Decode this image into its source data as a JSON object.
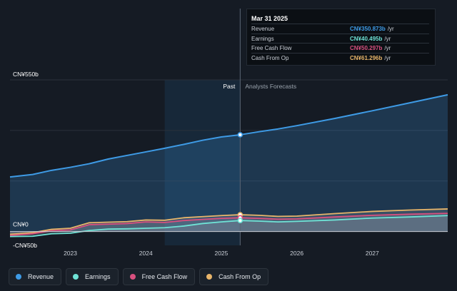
{
  "colors": {
    "revenue": "#3e9be6",
    "earnings": "#6fe3d6",
    "fcf": "#d9507f",
    "cfo": "#e8b56a",
    "background": "#151b24",
    "past_shade": "#1b3a55"
  },
  "tooltip": {
    "date": "Mar 31 2025",
    "unit": "/yr",
    "rows": [
      {
        "label": "Revenue",
        "value": "CN¥350.873b"
      },
      {
        "label": "Earnings",
        "value": "CN¥40.495b"
      },
      {
        "label": "Free Cash Flow",
        "value": "CN¥50.297b"
      },
      {
        "label": "Cash From Op",
        "value": "CN¥61.296b"
      }
    ]
  },
  "legend": [
    {
      "label": "Revenue",
      "icon": "revenue-dot"
    },
    {
      "label": "Earnings",
      "icon": "earnings-dot"
    },
    {
      "label": "Free Cash Flow",
      "icon": "fcf-dot"
    },
    {
      "label": "Cash From Op",
      "icon": "cfo-dot"
    }
  ],
  "chart_data": {
    "type": "area",
    "title": "",
    "xlabel": "",
    "ylabel": "",
    "y_labels": [
      "CN¥550b",
      "CN¥0",
      "-CN¥50b"
    ],
    "y_ticks": [
      550,
      0,
      -50
    ],
    "ylim": [
      -50,
      550
    ],
    "xlim": [
      2022.2,
      2028.0
    ],
    "x_ticks": [
      2023,
      2024,
      2025,
      2026,
      2027
    ],
    "x_tick_labels": [
      "2023",
      "2024",
      "2025",
      "2026",
      "2027"
    ],
    "grid": true,
    "past_label": "Past",
    "forecast_label": "Analysts Forecasts",
    "past_start": 2024.25,
    "divider_x": 2025.25,
    "series": [
      {
        "name": "Revenue",
        "key": "revenue",
        "x": [
          2022.2,
          2022.5,
          2022.75,
          2023.0,
          2023.25,
          2023.5,
          2023.75,
          2024.0,
          2024.25,
          2024.5,
          2024.75,
          2025.0,
          2025.25,
          2025.5,
          2025.75,
          2026.0,
          2026.5,
          2027.0,
          2027.5,
          2028.0
        ],
        "y": [
          198,
          207,
          222,
          233,
          246,
          263,
          276,
          289,
          302,
          316,
          331,
          343,
          351,
          362,
          372,
          384,
          410,
          438,
          467,
          496
        ]
      },
      {
        "name": "Earnings",
        "key": "earnings",
        "x": [
          2022.2,
          2022.5,
          2022.75,
          2023.0,
          2023.25,
          2023.5,
          2023.75,
          2024.0,
          2024.25,
          2024.5,
          2024.75,
          2025.0,
          2025.25,
          2025.5,
          2025.75,
          2026.0,
          2026.5,
          2027.0,
          2027.5,
          2028.0
        ],
        "y": [
          -18,
          -17,
          -8,
          -6,
          4,
          9,
          10,
          12,
          14,
          20,
          29,
          35,
          40,
          38,
          35,
          37,
          42,
          49,
          53,
          58
        ]
      },
      {
        "name": "Free Cash Flow",
        "key": "fcf",
        "x": [
          2022.2,
          2022.5,
          2022.75,
          2023.0,
          2023.25,
          2023.5,
          2023.75,
          2024.0,
          2024.25,
          2024.5,
          2024.75,
          2025.0,
          2025.25,
          2025.5,
          2025.75,
          2026.0,
          2026.5,
          2027.0,
          2027.5,
          2028.0
        ],
        "y": [
          -14,
          -8,
          3,
          6,
          25,
          27,
          29,
          35,
          33,
          40,
          44,
          48,
          50,
          48,
          45,
          46,
          53,
          59,
          63,
          66
        ]
      },
      {
        "name": "Cash From Op",
        "key": "cfo",
        "x": [
          2022.2,
          2022.5,
          2022.75,
          2023.0,
          2023.25,
          2023.5,
          2023.75,
          2024.0,
          2024.25,
          2024.5,
          2024.75,
          2025.0,
          2025.25,
          2025.5,
          2025.75,
          2026.0,
          2026.5,
          2027.0,
          2027.5,
          2028.0
        ],
        "y": [
          -10,
          -4,
          8,
          12,
          32,
          34,
          36,
          42,
          41,
          50,
          54,
          58,
          61,
          59,
          55,
          56,
          65,
          73,
          78,
          82
        ]
      }
    ]
  }
}
